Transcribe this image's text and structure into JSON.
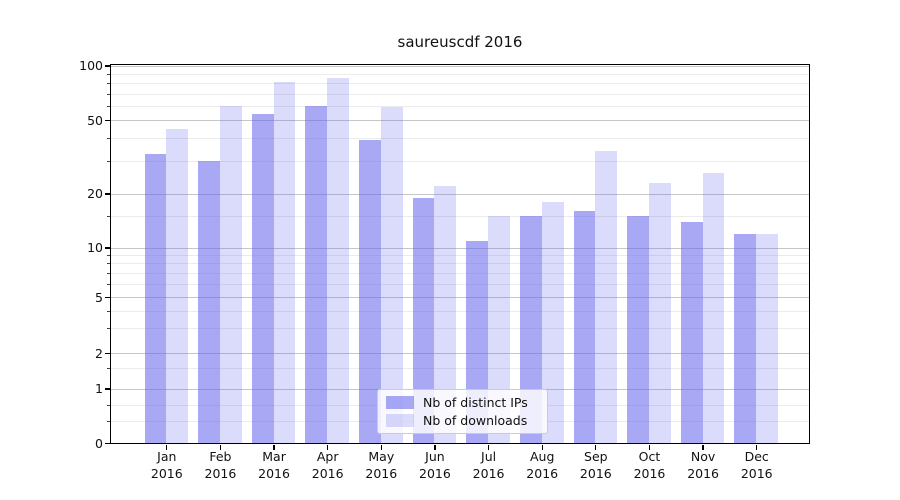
{
  "chart_data": {
    "type": "bar",
    "title": "saureuscdf 2016",
    "categories": [
      "Jan",
      "Feb",
      "Mar",
      "Apr",
      "May",
      "Jun",
      "Jul",
      "Aug",
      "Sep",
      "Oct",
      "Nov",
      "Dec"
    ],
    "x_tick_line2": "2016",
    "series": [
      {
        "name": "Nb of distinct IPs",
        "color": "rgba(102,102,238,0.57)",
        "values": [
          33,
          30,
          54,
          60,
          39,
          19,
          11,
          15,
          16,
          15,
          14,
          12
        ]
      },
      {
        "name": "Nb of downloads",
        "color": "rgba(102,102,238,0.235)",
        "values": [
          45,
          60,
          82,
          86,
          59,
          22,
          15,
          18,
          34,
          23,
          26,
          12
        ]
      }
    ],
    "yscale": "log-like (symlog, linear below 1)",
    "ylim": [
      0,
      100
    ],
    "y_ticks": [
      0,
      1,
      2,
      5,
      10,
      20,
      50,
      100
    ],
    "y_minor_ticks": [
      0.4,
      0.7,
      1.5,
      3,
      4,
      6,
      7,
      8,
      9,
      15,
      30,
      40,
      60,
      70,
      80,
      90
    ],
    "grid": true,
    "legend_position": "lower center"
  },
  "colors": {
    "bar_base": "#6666ee",
    "bar_dark_on_white": "#a8a8f5",
    "bar_light_on_white": "#dbdbf9",
    "grid_major": "#c6c6c6",
    "grid_minor": "#ebebeb",
    "spine": "#000000",
    "legend_border": "#cccccc"
  }
}
